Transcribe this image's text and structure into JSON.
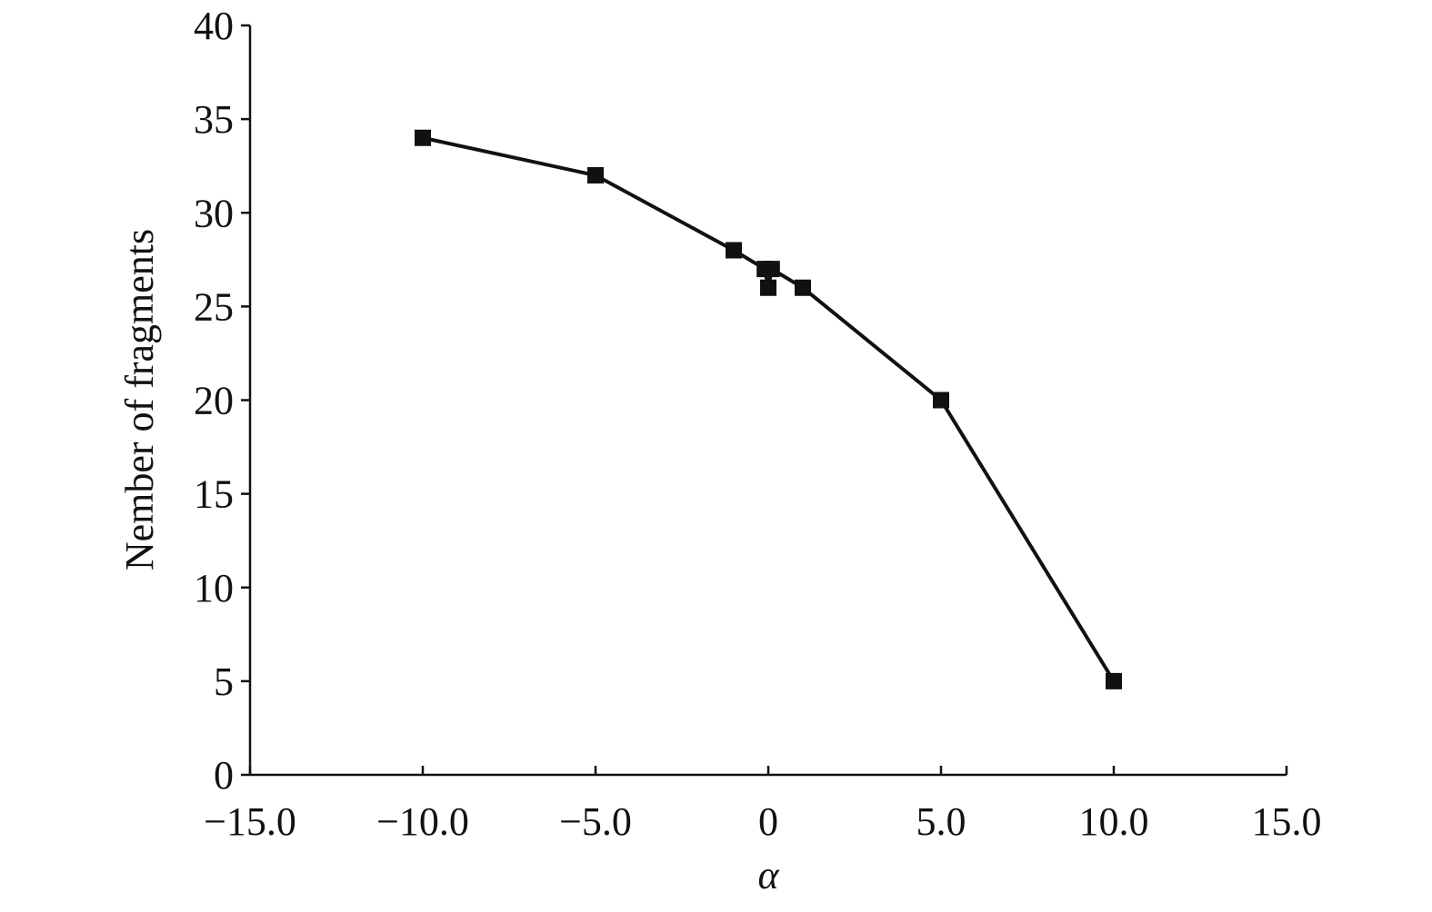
{
  "chart_data": {
    "type": "line",
    "x_label": "α",
    "y_label": "Nember of fragments",
    "x": [
      -10,
      -5,
      -1,
      -0.1,
      0,
      0.1,
      1,
      5,
      10
    ],
    "series": [
      {
        "color": "#111111",
        "values": [
          34,
          32,
          28,
          27,
          26,
          27,
          26,
          20,
          5
        ]
      }
    ],
    "xlim": [
      -15,
      15
    ],
    "xticks": [
      {
        "value": -15,
        "label": "−15.0"
      },
      {
        "value": -10,
        "label": "−10.0"
      },
      {
        "value": -5,
        "label": "−5.0"
      },
      {
        "value": 0,
        "label": "0"
      },
      {
        "value": 5,
        "label": "5.0"
      },
      {
        "value": 10,
        "label": "10.0"
      },
      {
        "value": 15,
        "label": "15.0"
      }
    ],
    "ylim": [
      0,
      40
    ],
    "yticks": [
      0,
      5,
      10,
      15,
      20,
      25,
      30,
      35,
      40
    ],
    "grid": false
  }
}
